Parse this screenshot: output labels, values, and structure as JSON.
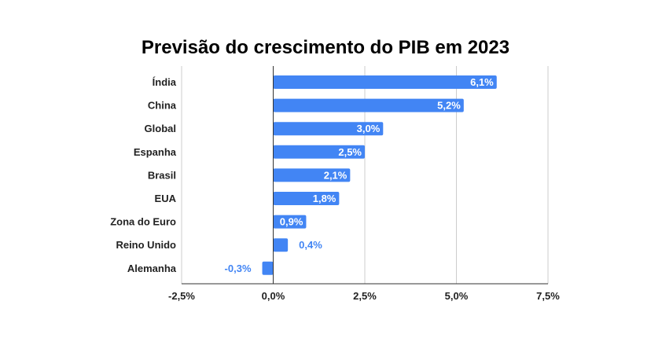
{
  "chart_data": {
    "type": "bar",
    "orientation": "horizontal",
    "title": "Previsão do crescimento do PIB em 2023",
    "categories": [
      "Índia",
      "China",
      "Global",
      "Espanha",
      "Brasil",
      "EUA",
      "Zona do Euro",
      "Reino Unido",
      "Alemanha"
    ],
    "values": [
      6.1,
      5.2,
      3.0,
      2.5,
      2.1,
      1.8,
      0.9,
      0.4,
      -0.3
    ],
    "value_labels": [
      "6,1%",
      "5,2%",
      "3,0%",
      "2,5%",
      "2,1%",
      "1,8%",
      "0,9%",
      "0,4%",
      "-0,3%"
    ],
    "xlim": [
      -2.5,
      7.5
    ],
    "xticks": [
      -2.5,
      0,
      2.5,
      5,
      7.5
    ],
    "xtick_labels": [
      "-2,5%",
      "0,0%",
      "2,5%",
      "5,0%",
      "7,5%"
    ],
    "xlabel": "",
    "ylabel": "",
    "grid": "vertical",
    "legend": "none",
    "colors": {
      "bar": "#4285f4",
      "grid": "#cccccc",
      "axis": "#333333"
    }
  }
}
